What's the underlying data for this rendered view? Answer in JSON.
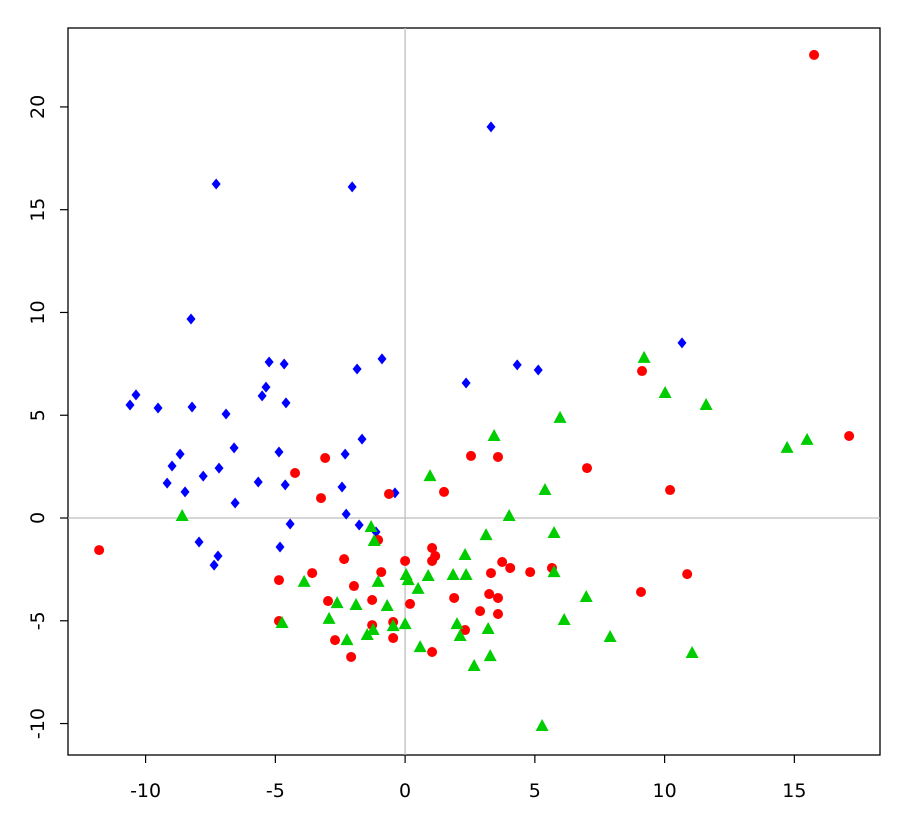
{
  "chart_data": {
    "type": "scatter",
    "xlim": [
      -12.99,
      18.3
    ],
    "ylim": [
      -11.53,
      23.84
    ],
    "xticks": [
      -10,
      -5,
      0,
      5,
      10,
      15
    ],
    "yticks": [
      -10,
      -5,
      0,
      5,
      10,
      15,
      20
    ],
    "hlines": [
      0
    ],
    "vlines": [
      0
    ],
    "series": [
      {
        "color": "#0000ff",
        "marker": "diamond",
        "x": [
          3.31,
          -7.28,
          -2.04,
          -8.25,
          10.67,
          -5.24,
          -4.66,
          -0.89,
          -1.85,
          2.35,
          4.32,
          5.13,
          -10.37,
          -10.6,
          -9.52,
          -8.21,
          -5.36,
          -5.51,
          -4.59,
          -6.9,
          -6.59,
          -8.67,
          -4.86,
          -2.31,
          -1.66,
          -8.98,
          -7.17,
          -7.78,
          -5.66,
          -9.17,
          -4.62,
          -8.48,
          -2.43,
          -6.55,
          -0.39,
          -2.27,
          -1.77,
          -4.43,
          -1.12,
          -7.94,
          -4.82,
          -7.21,
          -7.36
        ],
        "y": [
          19.03,
          16.25,
          16.11,
          9.68,
          8.52,
          7.59,
          7.49,
          7.74,
          7.25,
          6.57,
          7.45,
          7.2,
          5.99,
          5.5,
          5.35,
          5.4,
          6.37,
          5.94,
          5.6,
          5.06,
          3.41,
          3.11,
          3.21,
          3.11,
          3.84,
          2.53,
          2.43,
          2.04,
          1.75,
          1.7,
          1.61,
          1.27,
          1.51,
          0.73,
          1.22,
          0.19,
          -0.34,
          -0.29,
          -0.68,
          -1.17,
          -1.41,
          -1.85,
          -2.29
        ]
      },
      {
        "color": "#ff0000",
        "marker": "circle",
        "x": [
          15.76,
          17.11,
          9.13,
          7.01,
          10.21,
          2.54,
          3.58,
          1.5,
          -0.62,
          -4.24,
          -3.08,
          -3.24,
          -11.79,
          -1.04,
          1.04,
          0,
          1.16,
          1.04,
          -2.35,
          -3.58,
          -0.92,
          -4.86,
          -1.97,
          3.74,
          4.05,
          3.31,
          4.82,
          5.66,
          0.19,
          -1.27,
          1.89,
          3.24,
          3.58,
          -2.97,
          3.58,
          2.89,
          9.09,
          10.87,
          -4.86,
          -1.27,
          -0.46,
          2.31,
          -2.7,
          -0.46,
          1.04,
          -2.08
        ],
        "y": [
          22.53,
          3.99,
          7.15,
          2.43,
          1.36,
          3.02,
          2.97,
          1.27,
          1.17,
          2.19,
          2.92,
          0.97,
          -1.56,
          -1.07,
          -1.46,
          -2.09,
          -1.85,
          -2.09,
          -2,
          -2.68,
          -2.63,
          -3.02,
          -3.31,
          -2.14,
          -2.43,
          -2.68,
          -2.63,
          -2.43,
          -4.18,
          -3.99,
          -3.89,
          -3.7,
          -3.89,
          -4.04,
          -4.67,
          -4.53,
          -3.6,
          -2.73,
          -5.01,
          -5.21,
          -5.06,
          -5.45,
          -5.94,
          -5.84,
          -6.52,
          -6.76
        ]
      },
      {
        "color": "#00cd00",
        "marker": "triangle",
        "x": [
          9.21,
          10.02,
          11.6,
          5.97,
          14.72,
          15.49,
          3.43,
          0.96,
          5.39,
          -8.59,
          4.01,
          -1.31,
          -1.19,
          3.12,
          5.74,
          2.31,
          0.04,
          0.89,
          0.12,
          1.85,
          2.35,
          5.74,
          -1.04,
          -3.89,
          0.5,
          6.98,
          -0.69,
          -1.89,
          -2.62,
          6.13,
          7.9,
          -2.93,
          -4.74,
          -0.46,
          0,
          2,
          2.12,
          3.2,
          -1.46,
          -1.23,
          -2.24,
          0.58,
          3.28,
          2.66,
          11.06,
          5.28
        ],
        "y": [
          7.79,
          6.08,
          5.5,
          4.87,
          3.41,
          3.8,
          3.99,
          2.04,
          1.36,
          0.1,
          0.1,
          -0.44,
          -1.12,
          -0.83,
          -0.73,
          -1.8,
          -2.77,
          -2.82,
          -3.02,
          -2.77,
          -2.77,
          -2.63,
          -3.11,
          -3.11,
          -3.45,
          -3.84,
          -4.28,
          -4.23,
          -4.14,
          -4.96,
          -5.79,
          -4.91,
          -5.11,
          -5.26,
          -5.16,
          -5.16,
          -5.74,
          -5.4,
          -5.69,
          -5.45,
          -5.94,
          -6.28,
          -6.72,
          -7.2,
          -6.57,
          -10.12
        ]
      }
    ]
  }
}
